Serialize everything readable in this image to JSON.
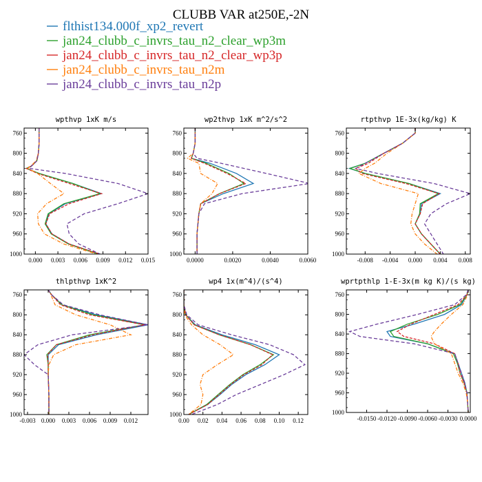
{
  "title": "CLUBB VAR at250E,-2N",
  "series": [
    {
      "name": "flthist134.000f_xp2_revert",
      "color": "#1f77b4",
      "dash": ""
    },
    {
      "name": "jan24_clubb_c_invrs_tau_n2_clear_wp3m",
      "color": "#2ca02c",
      "dash": ""
    },
    {
      "name": "jan24_clubb_c_invrs_tau_n2_clear_wp3p",
      "color": "#d62728",
      "dash": "4,2"
    },
    {
      "name": "jan24_clubb_c_invrs_tau_n2m",
      "color": "#ff7f0e",
      "dash": "5,2,1,2"
    },
    {
      "name": "jan24_clubb_c_invrs_tau_n2p",
      "color": "#6a3d9a",
      "dash": "5,3"
    }
  ],
  "chart_data": [
    {
      "type": "line",
      "title": "wpthvp  1xK m/s",
      "ylim": [
        1000,
        750
      ],
      "xlim": [
        -0.0015,
        0.015
      ],
      "yticks": [
        760,
        800,
        840,
        880,
        920,
        960,
        1000
      ],
      "xticks": [
        "0.000",
        "0.003",
        "0.006",
        "0.009",
        "0.012",
        "0.015"
      ],
      "xtick_values": [
        0.0,
        0.003,
        0.006,
        0.009,
        0.012,
        0.015
      ],
      "y": [
        750,
        760,
        780,
        800,
        815,
        825,
        830,
        840,
        860,
        880,
        900,
        920,
        940,
        960,
        980,
        1000
      ],
      "series_values": [
        [
          0.0005,
          0.0005,
          0.0005,
          0.0004,
          0.0002,
          -0.0005,
          -0.0012,
          0.0005,
          0.005,
          0.0088,
          0.004,
          0.0018,
          0.0014,
          0.0022,
          0.0045,
          0.0085
        ],
        [
          0.0005,
          0.0005,
          0.0005,
          0.0004,
          0.0002,
          -0.0005,
          -0.0012,
          0.0005,
          0.005,
          0.0086,
          0.0038,
          0.0017,
          0.0013,
          0.0021,
          0.0044,
          0.0084
        ],
        [
          0.0005,
          0.0005,
          0.0005,
          0.0004,
          0.0002,
          -0.0005,
          -0.0012,
          0.0003,
          0.0045,
          0.0088,
          0.0045,
          0.0019,
          0.0014,
          0.0022,
          0.0045,
          0.0086
        ],
        [
          0.0005,
          0.0005,
          0.0005,
          0.0004,
          0.0001,
          -0.0006,
          -0.001,
          0.0003,
          0.002,
          0.0038,
          0.0015,
          0.0003,
          0.0004,
          0.0012,
          0.0038,
          0.0082
        ],
        [
          0.0005,
          0.0005,
          0.0005,
          0.0004,
          0.0002,
          -0.0005,
          -0.0008,
          0.004,
          0.011,
          0.015,
          0.011,
          0.0065,
          0.0042,
          0.0045,
          0.0058,
          0.0086
        ]
      ]
    },
    {
      "type": "line",
      "title": "wp2thvp  1xK m^2/s^2",
      "ylim": [
        1000,
        750
      ],
      "xlim": [
        -0.0006,
        0.006
      ],
      "yticks": [
        760,
        800,
        840,
        880,
        920,
        960,
        1000
      ],
      "xticks": [
        "0.0000",
        "0.0020",
        "0.0040",
        "0.0060"
      ],
      "xtick_values": [
        0.0,
        0.002,
        0.004,
        0.006
      ],
      "y": [
        750,
        780,
        800,
        810,
        820,
        840,
        860,
        880,
        900,
        920,
        960,
        1000
      ],
      "series_values": [
        [
          0.0,
          0.0,
          -0.0001,
          -0.0002,
          0.0008,
          0.0022,
          0.0031,
          0.0015,
          0.0003,
          0.0002,
          0.0001,
          0.0001
        ],
        [
          0.0,
          0.0,
          -0.0001,
          -0.0002,
          0.0006,
          0.0018,
          0.0026,
          0.0013,
          0.0003,
          0.0002,
          0.0001,
          0.0001
        ],
        [
          0.0,
          0.0,
          -0.0001,
          -0.0002,
          0.0005,
          0.0017,
          0.0027,
          0.0013,
          0.0003,
          0.0002,
          0.0001,
          0.0001
        ],
        [
          0.0,
          0.0,
          -0.0001,
          -0.0004,
          0.0002,
          0.0003,
          0.0012,
          0.0009,
          0.0003,
          0.0002,
          0.0001,
          0.0001
        ],
        [
          0.0,
          0.0,
          -0.0001,
          0.0001,
          0.0014,
          0.0038,
          0.0061,
          0.0025,
          0.0005,
          0.0002,
          0.0001,
          0.0001
        ]
      ]
    },
    {
      "type": "line",
      "title": "rtpthvp  1E-3x(kg/kg) K",
      "ylim": [
        1000,
        750
      ],
      "xlim": [
        -0.011,
        0.0088
      ],
      "yticks": [
        760,
        800,
        840,
        880,
        920,
        960,
        1000
      ],
      "xticks": [
        "-0.008",
        "-0.004",
        "0.000",
        "0.004",
        "0.008"
      ],
      "xtick_values": [
        -0.008,
        -0.004,
        0.0,
        0.004,
        0.008
      ],
      "y": [
        750,
        760,
        780,
        800,
        820,
        830,
        840,
        860,
        880,
        900,
        920,
        940,
        960,
        980,
        1000
      ],
      "series_values": [
        [
          0.0,
          0.0,
          -0.002,
          -0.005,
          -0.008,
          -0.0105,
          -0.008,
          -0.001,
          0.004,
          0.001,
          0.0008,
          0.0,
          0.001,
          0.0025,
          0.004
        ],
        [
          0.0,
          0.0,
          -0.002,
          -0.005,
          -0.008,
          -0.0104,
          -0.008,
          -0.001,
          0.0037,
          0.0008,
          0.0007,
          0.0,
          0.001,
          0.0025,
          0.004
        ],
        [
          0.0,
          0.0,
          -0.002,
          -0.005,
          -0.0075,
          -0.0095,
          -0.0085,
          -0.0015,
          0.0038,
          0.0012,
          0.0008,
          0.0,
          0.001,
          0.0025,
          0.004
        ],
        [
          0.0,
          0.0,
          -0.002,
          -0.0045,
          -0.0065,
          -0.008,
          -0.009,
          -0.0055,
          0.0005,
          0.0,
          -0.0005,
          -0.0007,
          0.0,
          0.0015,
          0.0035
        ],
        [
          0.0,
          0.0,
          -0.002,
          -0.005,
          -0.008,
          -0.0095,
          -0.006,
          0.003,
          0.0088,
          0.005,
          0.0025,
          0.0015,
          0.0025,
          0.0035,
          0.0045
        ]
      ]
    },
    {
      "type": "line",
      "title": "thlpthvp  1xK^2",
      "ylim": [
        1000,
        750
      ],
      "xlim": [
        -0.0035,
        0.0145
      ],
      "yticks": [
        760,
        800,
        840,
        880,
        920,
        960,
        1000
      ],
      "xticks": [
        "-0.003",
        "0.000",
        "0.003",
        "0.006",
        "0.009",
        "0.012"
      ],
      "xtick_values": [
        -0.003,
        0.0,
        0.003,
        0.006,
        0.009,
        0.012
      ],
      "y": [
        750,
        760,
        780,
        800,
        820,
        840,
        860,
        880,
        900,
        920,
        960,
        1000
      ],
      "series_values": [
        [
          0.0,
          0.0005,
          0.002,
          0.007,
          0.0145,
          0.007,
          0.0015,
          0.0,
          0.0,
          0.0,
          0.0001,
          0.0001
        ],
        [
          0.0,
          0.0005,
          0.002,
          0.0065,
          0.014,
          0.006,
          0.0012,
          -0.0002,
          0.0,
          0.0,
          0.0001,
          0.0001
        ],
        [
          0.0,
          0.0005,
          0.0018,
          0.006,
          0.014,
          0.0065,
          0.0012,
          -0.0001,
          0.0,
          0.0,
          0.0001,
          0.0001
        ],
        [
          0.0,
          0.0004,
          0.001,
          0.004,
          0.009,
          0.012,
          0.004,
          0.0008,
          0.0001,
          0.0,
          0.0001,
          0.0001
        ],
        [
          0.0,
          0.0005,
          0.0022,
          0.0075,
          0.0145,
          0.0035,
          -0.0015,
          -0.0035,
          -0.002,
          0.0,
          0.0001,
          0.0001
        ]
      ]
    },
    {
      "type": "line",
      "title": "wp4  1x(m^4)/(s^4)",
      "ylim": [
        1000,
        750
      ],
      "xlim": [
        0.0,
        0.13
      ],
      "yticks": [
        760,
        800,
        840,
        880,
        920,
        960,
        1000
      ],
      "xticks": [
        "0.00",
        "0.02",
        "0.04",
        "0.06",
        "0.08",
        "0.10",
        "0.12"
      ],
      "xtick_values": [
        0.0,
        0.02,
        0.04,
        0.06,
        0.08,
        0.1,
        0.12
      ],
      "y": [
        750,
        780,
        800,
        820,
        840,
        860,
        880,
        900,
        920,
        940,
        960,
        980,
        1000
      ],
      "series_values": [
        [
          0.0,
          0.0,
          0.002,
          0.012,
          0.04,
          0.075,
          0.1,
          0.085,
          0.065,
          0.05,
          0.038,
          0.025,
          0.005
        ],
        [
          0.0,
          0.0,
          0.002,
          0.011,
          0.037,
          0.07,
          0.094,
          0.08,
          0.062,
          0.048,
          0.036,
          0.024,
          0.005
        ],
        [
          0.0,
          0.0,
          0.002,
          0.011,
          0.037,
          0.07,
          0.093,
          0.082,
          0.063,
          0.049,
          0.037,
          0.025,
          0.005
        ],
        [
          0.0,
          0.0,
          0.001,
          0.008,
          0.02,
          0.038,
          0.052,
          0.035,
          0.02,
          0.017,
          0.02,
          0.018,
          0.005
        ],
        [
          0.0,
          0.0,
          0.003,
          0.015,
          0.05,
          0.09,
          0.115,
          0.127,
          0.105,
          0.08,
          0.055,
          0.035,
          0.008
        ]
      ]
    },
    {
      "type": "line",
      "title": "wprtpthlp  1-E-3x(m kg K)/(s kg)",
      "ylim": [
        1000,
        750
      ],
      "xlim": [
        -0.018,
        0.0003
      ],
      "yticks": [
        760,
        800,
        840,
        880,
        920,
        960,
        1000
      ],
      "xticks": [
        "-0.0150",
        "-0.0120",
        "-0.0090",
        "-0.0060",
        "-0.0030",
        "0.0000"
      ],
      "xtick_values": [
        -0.015,
        -0.012,
        -0.009,
        -0.006,
        -0.003,
        0.0
      ],
      "y": [
        750,
        760,
        780,
        800,
        820,
        835,
        845,
        860,
        880,
        900,
        920,
        940,
        960,
        980,
        1000
      ],
      "series_values": [
        [
          0.0,
          -0.0002,
          -0.001,
          -0.0035,
          -0.008,
          -0.012,
          -0.0115,
          -0.006,
          -0.002,
          -0.0015,
          -0.001,
          -0.0005,
          -0.0002,
          -0.0001,
          0.0
        ],
        [
          0.0,
          -0.0002,
          -0.0012,
          -0.0045,
          -0.009,
          -0.0115,
          -0.011,
          -0.006,
          -0.0022,
          -0.0016,
          -0.0012,
          -0.0006,
          -0.0002,
          -0.0001,
          0.0
        ],
        [
          0.0,
          -0.0002,
          -0.0015,
          -0.005,
          -0.0085,
          -0.0105,
          -0.0095,
          -0.005,
          -0.002,
          -0.0015,
          -0.0012,
          -0.0006,
          -0.0002,
          -0.0001,
          0.0
        ],
        [
          0.0,
          -0.0001,
          -0.0008,
          -0.0025,
          -0.004,
          -0.005,
          -0.0055,
          -0.005,
          -0.0025,
          -0.002,
          -0.0015,
          -0.0008,
          -0.0003,
          -0.0001,
          0.0
        ],
        [
          0.0,
          -0.0003,
          -0.002,
          -0.0075,
          -0.0135,
          -0.0175,
          -0.016,
          -0.008,
          -0.002,
          -0.0015,
          -0.001,
          -0.0005,
          -0.0002,
          -0.0001,
          0.0
        ]
      ]
    }
  ]
}
